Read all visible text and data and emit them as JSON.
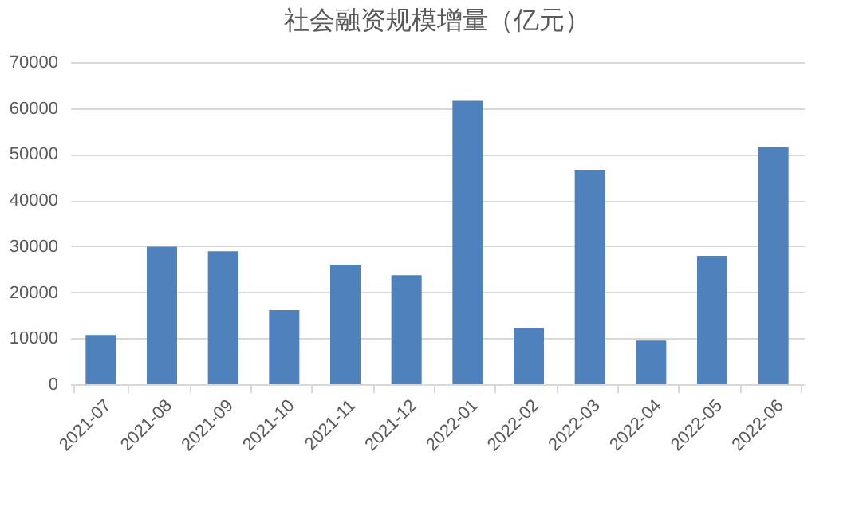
{
  "chart_data": {
    "type": "bar",
    "title": "社会融资规模增量（亿元）",
    "categories": [
      "2021-07",
      "2021-08",
      "2021-09",
      "2021-10",
      "2021-11",
      "2021-12",
      "2022-01",
      "2022-02",
      "2022-03",
      "2022-04",
      "2022-05",
      "2022-06"
    ],
    "values": [
      10700,
      29900,
      28900,
      16100,
      26000,
      23700,
      61600,
      12200,
      46600,
      9500,
      27900,
      51500
    ],
    "color": "#4f81bd",
    "ylim": [
      0,
      70000
    ],
    "yticks": [
      0,
      10000,
      20000,
      30000,
      40000,
      50000,
      60000,
      70000
    ],
    "grid": "y"
  }
}
